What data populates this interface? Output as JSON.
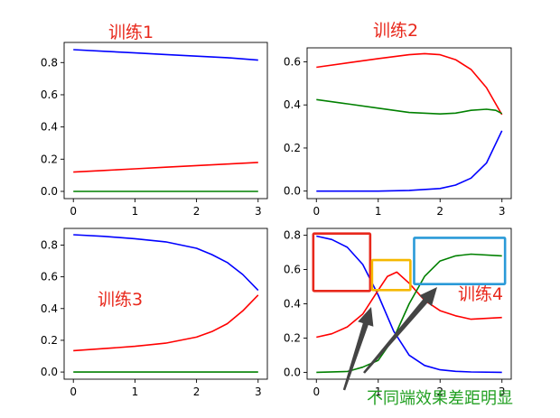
{
  "chart_data": [
    {
      "type": "line",
      "annotation": "训练1",
      "xlim": [
        -0.15,
        3.15
      ],
      "ylim": [
        -0.045,
        0.925
      ],
      "x_ticks": [
        "0",
        "1",
        "2",
        "3"
      ],
      "y_ticks": [
        "0.0",
        "0.2",
        "0.4",
        "0.6",
        "0.8"
      ],
      "series": [
        {
          "color": "#0000ff",
          "x": [
            0,
            0.5,
            1,
            1.5,
            2,
            2.5,
            3
          ],
          "values": [
            0.88,
            0.87,
            0.86,
            0.85,
            0.84,
            0.83,
            0.815
          ]
        },
        {
          "color": "#ff0000",
          "x": [
            0,
            0.5,
            1,
            1.5,
            2,
            2.5,
            3
          ],
          "values": [
            0.12,
            0.13,
            0.14,
            0.15,
            0.16,
            0.17,
            0.18
          ]
        },
        {
          "color": "#008000",
          "x": [
            0,
            3
          ],
          "values": [
            0.0,
            0.0
          ]
        }
      ]
    },
    {
      "type": "line",
      "annotation": "训练2",
      "xlim": [
        -0.15,
        3.15
      ],
      "ylim": [
        -0.035,
        0.665
      ],
      "x_ticks": [
        "0",
        "1",
        "2",
        "3"
      ],
      "y_ticks": [
        "0.0",
        "0.2",
        "0.4",
        "0.6"
      ],
      "series": [
        {
          "color": "#ff0000",
          "x": [
            0,
            0.5,
            1,
            1.5,
            1.75,
            2,
            2.25,
            2.5,
            2.75,
            3
          ],
          "values": [
            0.575,
            0.595,
            0.615,
            0.633,
            0.638,
            0.633,
            0.61,
            0.565,
            0.48,
            0.355
          ]
        },
        {
          "color": "#008000",
          "x": [
            0,
            0.5,
            1,
            1.5,
            2,
            2.25,
            2.5,
            2.75,
            2.9,
            3
          ],
          "values": [
            0.425,
            0.405,
            0.385,
            0.365,
            0.358,
            0.362,
            0.375,
            0.38,
            0.375,
            0.36
          ]
        },
        {
          "color": "#0000ff",
          "x": [
            0,
            1,
            1.5,
            2,
            2.25,
            2.5,
            2.75,
            3
          ],
          "values": [
            0.0,
            0.0,
            0.003,
            0.012,
            0.028,
            0.06,
            0.13,
            0.28
          ]
        }
      ]
    },
    {
      "type": "line",
      "annotation": "训练3",
      "xlim": [
        -0.15,
        3.15
      ],
      "ylim": [
        -0.045,
        0.905
      ],
      "x_ticks": [
        "0",
        "1",
        "2",
        "3"
      ],
      "y_ticks": [
        "0.0",
        "0.2",
        "0.4",
        "0.6",
        "0.8"
      ],
      "series": [
        {
          "color": "#0000ff",
          "x": [
            0,
            0.5,
            1,
            1.5,
            2,
            2.25,
            2.5,
            2.75,
            3
          ],
          "values": [
            0.865,
            0.855,
            0.84,
            0.82,
            0.78,
            0.74,
            0.69,
            0.615,
            0.515
          ]
        },
        {
          "color": "#ff0000",
          "x": [
            0,
            0.5,
            1,
            1.5,
            2,
            2.25,
            2.5,
            2.75,
            3
          ],
          "values": [
            0.135,
            0.148,
            0.162,
            0.182,
            0.22,
            0.255,
            0.305,
            0.385,
            0.485
          ]
        },
        {
          "color": "#008000",
          "x": [
            0,
            3
          ],
          "values": [
            0.0,
            0.0
          ]
        }
      ]
    },
    {
      "type": "line",
      "annotation": "训练4",
      "bottom_label": "不同端效果差距明显",
      "xlim": [
        -0.15,
        3.15
      ],
      "ylim": [
        -0.04,
        0.84
      ],
      "x_ticks": [
        "0",
        "1",
        "2",
        "3"
      ],
      "y_ticks": [
        "0.0",
        "0.2",
        "0.4",
        "0.6",
        "0.8"
      ],
      "series": [
        {
          "color": "#0000ff",
          "x": [
            0,
            0.25,
            0.5,
            0.75,
            1,
            1.25,
            1.5,
            1.75,
            2,
            2.25,
            2.5,
            3
          ],
          "values": [
            0.795,
            0.775,
            0.73,
            0.63,
            0.45,
            0.24,
            0.1,
            0.04,
            0.015,
            0.006,
            0.002,
            0.0
          ]
        },
        {
          "color": "#ff0000",
          "x": [
            0,
            0.25,
            0.5,
            0.75,
            1,
            1.15,
            1.3,
            1.5,
            1.75,
            2,
            2.25,
            2.5,
            3
          ],
          "values": [
            0.205,
            0.225,
            0.265,
            0.34,
            0.48,
            0.56,
            0.585,
            0.52,
            0.42,
            0.36,
            0.33,
            0.31,
            0.32
          ]
        },
        {
          "color": "#008000",
          "x": [
            0,
            0.5,
            0.75,
            1,
            1.25,
            1.5,
            1.75,
            2,
            2.25,
            2.5,
            3
          ],
          "values": [
            0.0,
            0.005,
            0.03,
            0.07,
            0.2,
            0.4,
            0.56,
            0.65,
            0.68,
            0.69,
            0.68
          ]
        }
      ]
    }
  ],
  "highlights": [
    {
      "color": "#e8281c",
      "x_range": [
        -0.05,
        0.87
      ],
      "y_range": [
        0.475,
        0.81
      ]
    },
    {
      "color": "#f5b800",
      "x_range": [
        0.9,
        1.52
      ],
      "y_range": [
        0.48,
        0.655
      ]
    },
    {
      "color": "#2a9ad8",
      "x_range": [
        1.58,
        3.05
      ],
      "y_range": [
        0.515,
        0.785
      ]
    }
  ]
}
